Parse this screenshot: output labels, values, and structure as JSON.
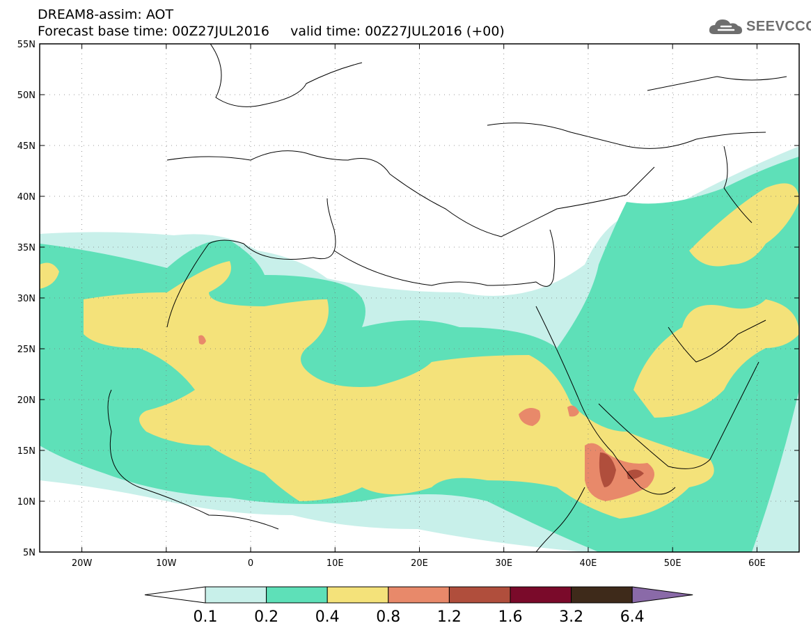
{
  "header": {
    "line1": "DREAM8-assim: AOT",
    "line2": "Forecast base time: 00Z27JUL2016     valid time: 00Z27JUL2016 (+00)"
  },
  "logo": {
    "text": "SEEVCCC",
    "icon": "cloud-icon"
  },
  "map": {
    "lat_range": [
      5,
      55
    ],
    "lon_range": [
      -25,
      65
    ],
    "lat_ticks": [
      {
        "value": 55,
        "label": "55N"
      },
      {
        "value": 50,
        "label": "50N"
      },
      {
        "value": 45,
        "label": "45N"
      },
      {
        "value": 40,
        "label": "40N"
      },
      {
        "value": 35,
        "label": "35N"
      },
      {
        "value": 30,
        "label": "30N"
      },
      {
        "value": 25,
        "label": "25N"
      },
      {
        "value": 20,
        "label": "20N"
      },
      {
        "value": 15,
        "label": "15N"
      },
      {
        "value": 10,
        "label": "10N"
      },
      {
        "value": 5,
        "label": "5N"
      }
    ],
    "lon_ticks": [
      {
        "value": -20,
        "label": "20W"
      },
      {
        "value": -10,
        "label": "10W"
      },
      {
        "value": 0,
        "label": "0"
      },
      {
        "value": 10,
        "label": "10E"
      },
      {
        "value": 20,
        "label": "20E"
      },
      {
        "value": 30,
        "label": "30E"
      },
      {
        "value": 40,
        "label": "40E"
      },
      {
        "value": 50,
        "label": "50E"
      },
      {
        "value": 60,
        "label": "60E"
      }
    ],
    "grid": "dotted"
  },
  "colorbar": {
    "labels": [
      "0.1",
      "0.2",
      "0.4",
      "0.8",
      "1.2",
      "1.6",
      "3.2",
      "6.4"
    ],
    "colors": [
      "#ffffff",
      "#c8f0ea",
      "#5ee0b8",
      "#f4e27a",
      "#e8896a",
      "#b04e3c",
      "#7a0a2a",
      "#3e2a1a",
      "#8a6aa8"
    ]
  }
}
